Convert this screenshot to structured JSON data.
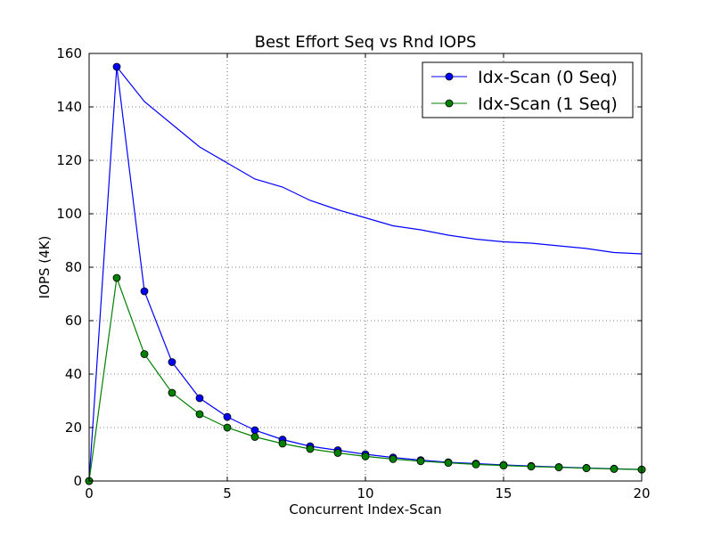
{
  "chart_data": {
    "type": "line",
    "title": "Best Effort Seq vs Rnd IOPS",
    "xlabel": "Concurrent Index-Scan",
    "ylabel": "IOPS (4K)",
    "xlim": [
      0,
      20
    ],
    "ylim": [
      0,
      160
    ],
    "xticks": [
      0,
      5,
      10,
      15,
      20
    ],
    "yticks": [
      0,
      20,
      40,
      60,
      80,
      100,
      120,
      140,
      160
    ],
    "grid": true,
    "legend_position": "top-right",
    "series": [
      {
        "name": "Idx-Scan (0 Seq)",
        "color": "#0000ff",
        "markers": true,
        "x": [
          0,
          1,
          2,
          3,
          4,
          5,
          6,
          7,
          8,
          9,
          10,
          11,
          12,
          13,
          14,
          15,
          16,
          17,
          18,
          19,
          20
        ],
        "values": [
          0,
          155,
          71,
          44.5,
          31,
          24,
          19,
          15.5,
          13,
          11.5,
          10,
          8.8,
          7.8,
          7,
          6.5,
          6,
          5.6,
          5.2,
          4.9,
          4.6,
          4.3
        ]
      },
      {
        "name": "Idx-Scan (1 Seq)",
        "color": "#008000",
        "markers": true,
        "x": [
          0,
          1,
          2,
          3,
          4,
          5,
          6,
          7,
          8,
          9,
          10,
          11,
          12,
          13,
          14,
          15,
          16,
          17,
          18,
          19,
          20
        ],
        "values": [
          0,
          76,
          47.5,
          33,
          25,
          20,
          16.5,
          14,
          12,
          10.5,
          9.2,
          8.2,
          7.4,
          6.8,
          6.2,
          5.8,
          5.4,
          5.1,
          4.8,
          4.5,
          4.3
        ]
      },
      {
        "color": "#0000ff",
        "markers": false,
        "x": [
          1,
          2,
          3,
          4,
          5,
          6,
          7,
          8,
          9,
          10,
          11,
          12,
          13,
          14,
          15,
          16,
          17,
          18,
          19,
          20
        ],
        "values": [
          155,
          142,
          133.5,
          125,
          119,
          113,
          110,
          105,
          101.5,
          98.5,
          95.5,
          94,
          92,
          90.5,
          89.5,
          89,
          88,
          87,
          85.5,
          85
        ]
      }
    ]
  }
}
